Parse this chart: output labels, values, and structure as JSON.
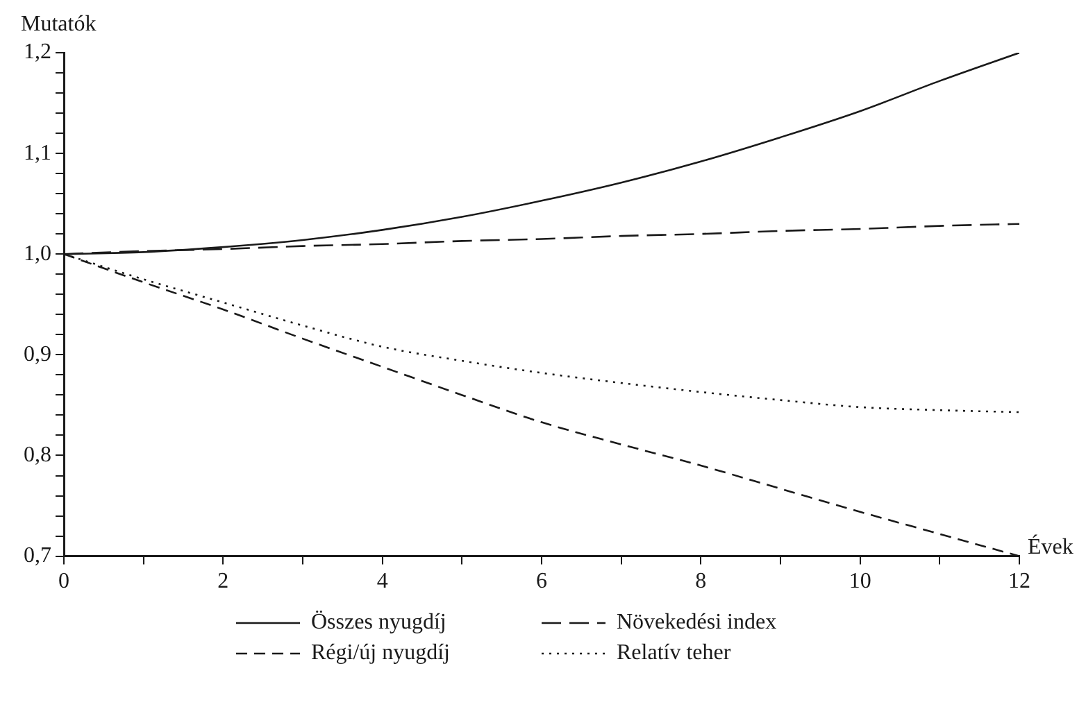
{
  "chart_data": {
    "type": "line",
    "xlabel": "Évek",
    "ylabel": "Mutatók",
    "x": [
      0,
      1,
      2,
      3,
      4,
      5,
      6,
      7,
      8,
      9,
      10,
      11,
      12
    ],
    "series": [
      {
        "name": "Összes nyugdíj",
        "color": "#1a1a1a",
        "line_style": "solid",
        "values": [
          1.0,
          1.002,
          1.007,
          1.014,
          1.024,
          1.037,
          1.053,
          1.071,
          1.092,
          1.116,
          1.142,
          1.172,
          1.2
        ]
      },
      {
        "name": "Növekedési index",
        "color": "#1a1a1a",
        "line_style": "dashed",
        "values": [
          1.0,
          1.003,
          1.005,
          1.008,
          1.01,
          1.013,
          1.015,
          1.018,
          1.02,
          1.023,
          1.025,
          1.028,
          1.03
        ]
      },
      {
        "name": "Régi/új nyugdíj",
        "color": "#1a1a1a",
        "line_style": "dashed",
        "values": [
          1.0,
          0.972,
          0.945,
          0.916,
          0.888,
          0.86,
          0.833,
          0.811,
          0.79,
          0.767,
          0.744,
          0.722,
          0.7
        ]
      },
      {
        "name": "Relatív teher",
        "color": "#1a1a1a",
        "line_style": "dotted",
        "values": [
          1.0,
          0.975,
          0.952,
          0.929,
          0.908,
          0.894,
          0.882,
          0.872,
          0.863,
          0.855,
          0.848,
          0.845,
          0.843
        ]
      }
    ],
    "xlim": [
      0,
      12
    ],
    "xticks": [
      0,
      {
        "value": 1,
        "label": null
      },
      2,
      {
        "value": 3,
        "label": null
      },
      4,
      {
        "value": 5,
        "label": null
      },
      6,
      {
        "value": 7,
        "label": null
      },
      8,
      {
        "value": 9,
        "label": null
      },
      10,
      {
        "value": 11,
        "label": null
      },
      12
    ],
    "ylim": [
      0.7,
      1.2
    ],
    "yticks": [
      {
        "value": 0.7,
        "label": "0,7"
      },
      {
        "value": 0.72,
        "label": null
      },
      {
        "value": 0.74,
        "label": null
      },
      {
        "value": 0.76,
        "label": null
      },
      {
        "value": 0.78,
        "label": null
      },
      {
        "value": 0.8,
        "label": "0,8"
      },
      {
        "value": 0.82,
        "label": null
      },
      {
        "value": 0.84,
        "label": null
      },
      {
        "value": 0.86,
        "label": null
      },
      {
        "value": 0.88,
        "label": null
      },
      {
        "value": 0.9,
        "label": "0,9"
      },
      {
        "value": 0.92,
        "label": null
      },
      {
        "value": 0.94,
        "label": null
      },
      {
        "value": 0.96,
        "label": null
      },
      {
        "value": 0.98,
        "label": null
      },
      {
        "value": 1.0,
        "label": "1,0"
      },
      {
        "value": 1.02,
        "label": null
      },
      {
        "value": 1.04,
        "label": null
      },
      {
        "value": 1.06,
        "label": null
      },
      {
        "value": 1.08,
        "label": null
      },
      {
        "value": 1.1,
        "label": "1,1"
      },
      {
        "value": 1.12,
        "label": null
      },
      {
        "value": 1.14,
        "label": null
      },
      {
        "value": 1.16,
        "label": null
      },
      {
        "value": 1.18,
        "label": null
      },
      {
        "value": 1.2,
        "label": "1,2"
      }
    ],
    "grid": false,
    "legend": "bottom",
    "marker": "none"
  }
}
